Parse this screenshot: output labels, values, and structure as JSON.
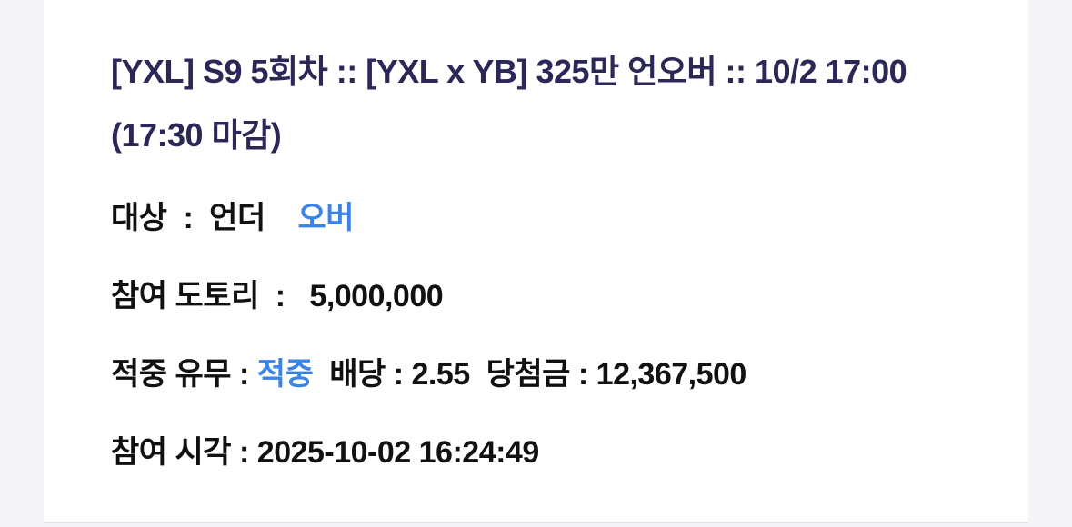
{
  "bet": {
    "title": "[YXL] S9 5회차 :: [YXL x YB] 325만 언오버 :: 10/2 17:00 (17:30 마감)",
    "target_label": "대상  :  ",
    "target_under": "언더",
    "target_over": "오버",
    "amount_label": "참여 도토리  :   ",
    "amount_value": "5,000,000",
    "result_label": "적중 유무 : ",
    "result_value": "적중",
    "odds_label": "  배당 : ",
    "odds_value": "2.55",
    "prize_label": "  당첨금 : ",
    "prize_value": "12,367,500",
    "time_label": "참여 시각 : ",
    "time_value": "2025-10-02 16:24:49"
  },
  "colors": {
    "title": "#2b2858",
    "accent": "#3a84e8"
  }
}
